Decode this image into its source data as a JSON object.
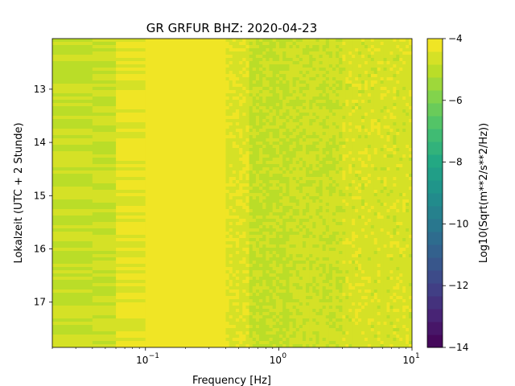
{
  "chart_data": {
    "type": "heatmap",
    "title": "GR GRFUR  BHZ: 2020-04-23",
    "xlabel": "Frequency [Hz]",
    "ylabel": "Lokalzeit (UTC + 2 Stunde)",
    "x_scale": "log",
    "xlim": [
      0.02,
      10
    ],
    "x_ticks": [
      {
        "value": 0.1,
        "label": "10",
        "exp": "−1"
      },
      {
        "value": 1,
        "label": "10",
        "exp": "0"
      },
      {
        "value": 10,
        "label": "10",
        "exp": "1"
      }
    ],
    "ylim": [
      12.05,
      17.85
    ],
    "y_inverted": true,
    "y_ticks": [
      {
        "value": 13,
        "label": "13"
      },
      {
        "value": 14,
        "label": "14"
      },
      {
        "value": 15,
        "label": "15"
      },
      {
        "value": 16,
        "label": "16"
      },
      {
        "value": 17,
        "label": "17"
      }
    ],
    "colorbar": {
      "label": "Log10(Sqrt(m**2/s**2/Hz))",
      "min": -14,
      "max": -4,
      "levels": 24,
      "colormap": "viridis",
      "ticks": [
        {
          "value": -4,
          "label": "−4"
        },
        {
          "value": -6,
          "label": "−6"
        },
        {
          "value": -8,
          "label": "−8"
        },
        {
          "value": -10,
          "label": "−10"
        },
        {
          "value": -12,
          "label": "−12"
        },
        {
          "value": -14,
          "label": "−14"
        }
      ]
    },
    "frequency_bands": [
      {
        "f_min": 0.02,
        "f_max": 0.04,
        "value": -4.9
      },
      {
        "f_min": 0.04,
        "f_max": 0.06,
        "value": -4.8
      },
      {
        "f_min": 0.06,
        "f_max": 0.1,
        "value": -4.4
      },
      {
        "f_min": 0.1,
        "f_max": 0.4,
        "value": -4.05
      },
      {
        "f_min": 0.4,
        "f_max": 0.6,
        "value": -4.5
      },
      {
        "f_min": 0.6,
        "f_max": 1.2,
        "value": -4.9
      },
      {
        "f_min": 1.2,
        "f_max": 3,
        "value": -4.75
      },
      {
        "f_min": 3,
        "f_max": 10,
        "value": -4.6
      }
    ]
  }
}
